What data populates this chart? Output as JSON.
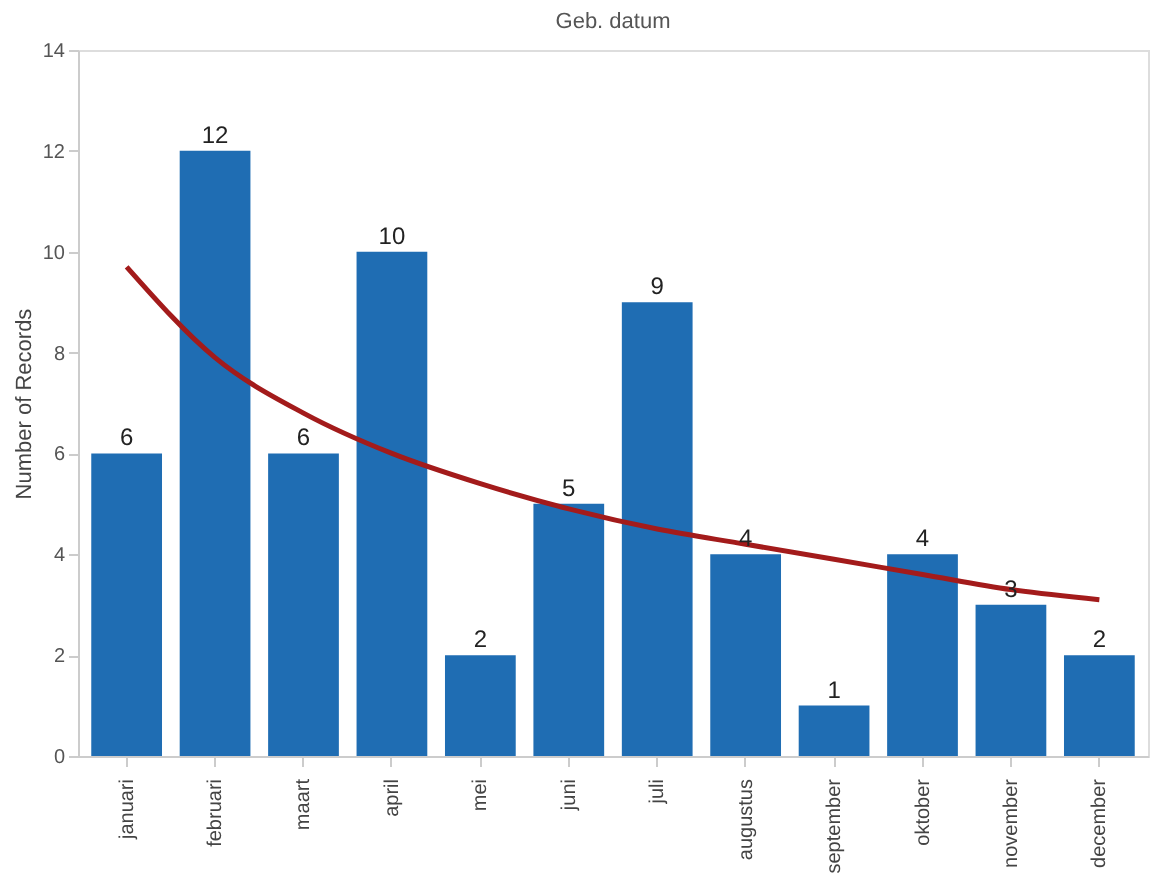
{
  "chart_data": {
    "type": "bar",
    "title": "Geb. datum",
    "ylabel": "Number of Records",
    "categories": [
      "januari",
      "februari",
      "maart",
      "april",
      "mei",
      "juni",
      "juli",
      "augustus",
      "september",
      "oktober",
      "november",
      "december"
    ],
    "series": [
      {
        "color": "#1f6db3",
        "values": [
          6,
          12,
          6,
          10,
          2,
          5,
          9,
          4,
          1,
          4,
          3,
          2
        ],
        "value_labels": [
          "6",
          "12",
          "6",
          "10",
          "2",
          "5",
          "9",
          "4",
          "1",
          "4",
          "3",
          "2"
        ]
      },
      {
        "type": "line",
        "color": "#a31b1b",
        "values": [
          9.7,
          7.9,
          6.8,
          6.0,
          5.4,
          4.9,
          4.5,
          4.2,
          3.9,
          3.6,
          3.3,
          3.1
        ]
      }
    ],
    "ylim": [
      0,
      14
    ],
    "yticks": [
      0,
      2,
      4,
      6,
      8,
      10,
      12,
      14
    ],
    "grid": false
  }
}
